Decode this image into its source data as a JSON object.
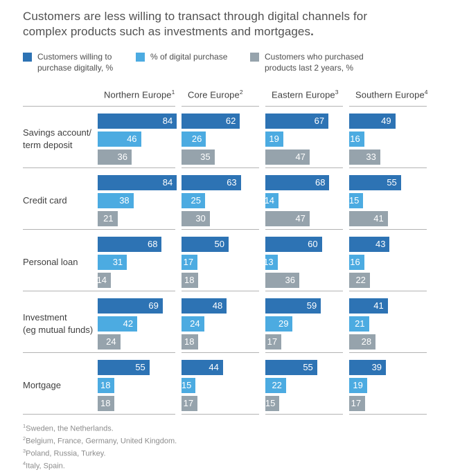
{
  "title": {
    "line1": "Customers are less willing to transact through digital channels for",
    "line2": "complex products such as investments and mortgages",
    "period": "."
  },
  "legend": [
    {
      "key": "willing-to-purchase-digitally",
      "line1": "Customers willing to",
      "line2": "purchase digitally, %",
      "color": "#2D73B4"
    },
    {
      "key": "digital-purchase-share",
      "line1": "% of digital purchase",
      "line2": "",
      "color": "#4CABE1"
    },
    {
      "key": "purchased-last-2-years",
      "line1": "Customers who purchased",
      "line2": "products last 2 years, %",
      "color": "#96A3AC"
    }
  ],
  "chart_data": {
    "type": "bar",
    "orientation": "horizontal",
    "unit": "%",
    "xlim": [
      0,
      100
    ],
    "grid": false,
    "legend_position": "top",
    "series": [
      "Customers willing to purchase digitally, %",
      "% of digital purchase",
      "Customers who purchased products last 2 years, %"
    ],
    "columns": [
      {
        "label": "Northern Europe",
        "sup": "1"
      },
      {
        "label": "Core Europe",
        "sup": "2"
      },
      {
        "label": "Eastern Europe",
        "sup": "3"
      },
      {
        "label": "Southern Europe",
        "sup": "4"
      }
    ],
    "rows": [
      {
        "label": "Savings account/term deposit",
        "lines": [
          "Savings account/",
          "term deposit"
        ],
        "values": [
          [
            84,
            46,
            36
          ],
          [
            62,
            26,
            35
          ],
          [
            67,
            19,
            47
          ],
          [
            49,
            16,
            33
          ]
        ]
      },
      {
        "label": "Credit card",
        "lines": [
          "Credit card"
        ],
        "values": [
          [
            84,
            38,
            21
          ],
          [
            63,
            25,
            30
          ],
          [
            68,
            14,
            47
          ],
          [
            55,
            15,
            41
          ]
        ]
      },
      {
        "label": "Personal loan",
        "lines": [
          "Personal loan"
        ],
        "values": [
          [
            68,
            31,
            14
          ],
          [
            50,
            17,
            18
          ],
          [
            60,
            13,
            36
          ],
          [
            43,
            16,
            22
          ]
        ]
      },
      {
        "label": "Investment (eg mutual funds)",
        "lines": [
          "Investment",
          "(eg mutual funds)"
        ],
        "values": [
          [
            69,
            42,
            24
          ],
          [
            48,
            24,
            18
          ],
          [
            59,
            29,
            17
          ],
          [
            41,
            21,
            28
          ]
        ]
      },
      {
        "label": "Mortgage",
        "lines": [
          "Mortgage"
        ],
        "values": [
          [
            55,
            18,
            18
          ],
          [
            44,
            15,
            17
          ],
          [
            55,
            22,
            15
          ],
          [
            39,
            19,
            17
          ]
        ]
      }
    ]
  },
  "footnotes": [
    {
      "sup": "1",
      "text": "Sweden, the Netherlands."
    },
    {
      "sup": "2",
      "text": "Belgium, France, Germany, United Kingdom."
    },
    {
      "sup": "3",
      "text": "Poland, Russia, Turkey."
    },
    {
      "sup": "4",
      "text": "Italy, Spain."
    }
  ]
}
